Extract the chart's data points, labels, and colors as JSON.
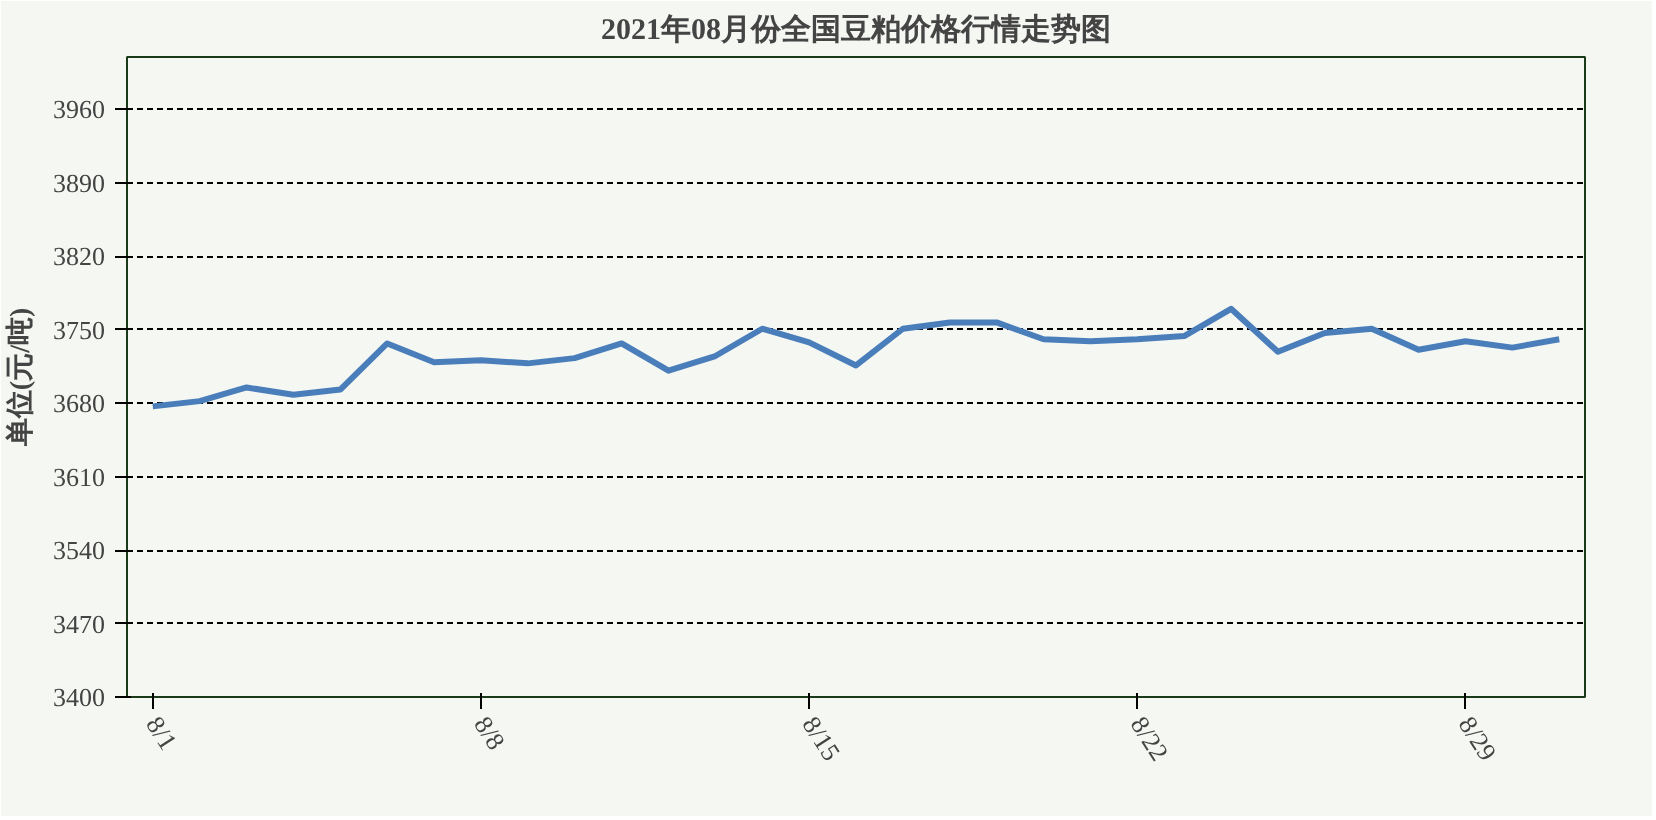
{
  "chart_data": {
    "type": "line",
    "title": "2021年08月份全国豆粕价格行情走势图",
    "ylabel": "单位(元/吨)",
    "categories": [
      "8/1",
      null,
      null,
      null,
      null,
      null,
      null,
      "8/8",
      null,
      null,
      null,
      null,
      null,
      null,
      "8/15",
      null,
      null,
      null,
      null,
      null,
      null,
      "8/22",
      null,
      null,
      null,
      null,
      null,
      null,
      "8/29",
      null,
      null
    ],
    "series": [
      {
        "color": "#4a7ebb",
        "values": [
          3677,
          3682,
          3695,
          3688,
          3693,
          3737,
          3719,
          3721,
          3718,
          3723,
          3737,
          3711,
          3725,
          3751,
          3738,
          3716,
          3751,
          3757,
          3757,
          3741,
          3739,
          3741,
          3744,
          3770,
          3729,
          3747,
          3751,
          3731,
          3739,
          3733,
          3741
        ]
      }
    ],
    "ylim": [
      3400,
      4010
    ],
    "yticks": [
      3400,
      3470,
      3540,
      3610,
      3680,
      3750,
      3820,
      3890,
      3960
    ],
    "grid": "y",
    "marker": "none",
    "line_style": "solid"
  }
}
